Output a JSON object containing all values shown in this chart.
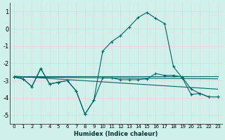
{
  "xlabel": "Humidex (Indice chaleur)",
  "bg_color": "#cff0eb",
  "line_color": "#006666",
  "grid_color": "#e8d8d8",
  "xlim": [
    -0.5,
    23.5
  ],
  "ylim": [
    -5.5,
    1.5
  ],
  "xticks": [
    0,
    1,
    2,
    3,
    4,
    5,
    6,
    7,
    8,
    9,
    10,
    11,
    12,
    13,
    14,
    15,
    16,
    17,
    18,
    19,
    20,
    21,
    22,
    23
  ],
  "yticks": [
    -5,
    -4,
    -3,
    -2,
    -1,
    0,
    1
  ],
  "series_marked_1": {
    "x": [
      0,
      1,
      2,
      3,
      4,
      5,
      6,
      7,
      8,
      9,
      10,
      11,
      12,
      13,
      14,
      15,
      16,
      17,
      18,
      19,
      20,
      21,
      22,
      23
    ],
    "y": [
      -2.8,
      -2.9,
      -3.35,
      -2.3,
      -3.2,
      -3.1,
      -3.0,
      -3.6,
      -4.95,
      -4.15,
      -1.3,
      -0.75,
      -0.4,
      0.1,
      0.65,
      0.95,
      0.6,
      0.3,
      -2.2,
      -2.85,
      -3.8,
      -3.75,
      -3.95,
      -3.95
    ]
  },
  "series_marked_2": {
    "x": [
      0,
      1,
      2,
      3,
      4,
      5,
      6,
      7,
      8,
      9,
      10,
      11,
      12,
      13,
      14,
      15,
      16,
      17,
      18,
      19,
      20,
      21,
      22,
      23
    ],
    "y": [
      -2.8,
      -2.9,
      -3.35,
      -2.3,
      -3.2,
      -3.1,
      -3.0,
      -3.6,
      -4.95,
      -4.15,
      -2.85,
      -2.85,
      -2.95,
      -2.95,
      -2.95,
      -2.9,
      -2.6,
      -2.7,
      -2.7,
      -2.8,
      -3.5,
      -3.75,
      -3.95,
      -3.95
    ]
  },
  "trend_line_1": {
    "x": [
      0,
      23
    ],
    "y": [
      -2.8,
      -2.9
    ]
  },
  "trend_line_2": {
    "x": [
      0,
      23
    ],
    "y": [
      -2.75,
      -3.5
    ]
  },
  "trend_line_3": {
    "x": [
      0,
      23
    ],
    "y": [
      -2.75,
      -2.75
    ]
  }
}
